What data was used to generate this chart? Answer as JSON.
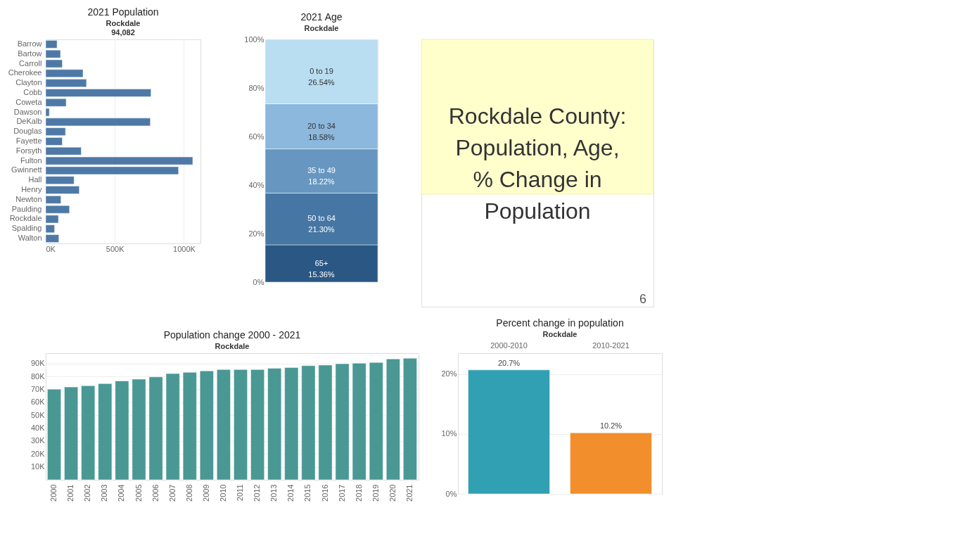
{
  "chart_data": [
    {
      "type": "bar",
      "orientation": "horizontal",
      "title": "2021 Population",
      "subtitle": "Rockdale",
      "annotations": [
        "94,082"
      ],
      "categories": [
        "Barrow",
        "Bartow",
        "Carroll",
        "Cherokee",
        "Clayton",
        "Cobb",
        "Coweta",
        "Dawson",
        "DeKalb",
        "Douglas",
        "Fayette",
        "Forsyth",
        "Fulton",
        "Gwinnett",
        "Hall",
        "Henry",
        "Newton",
        "Paulding",
        "Rockdale",
        "Spalding",
        "Walton"
      ],
      "values": [
        82000,
        107000,
        120000,
        270000,
        295000,
        762000,
        148000,
        26000,
        757000,
        143000,
        120000,
        257000,
        1064000,
        961000,
        205000,
        243000,
        110000,
        172000,
        92000,
        64000,
        95000
      ],
      "color": "#4e79a7",
      "xlim": [
        0,
        1120000
      ],
      "xticks": [
        {
          "value": 0,
          "label": "0K"
        },
        {
          "value": 500000,
          "label": "500K"
        },
        {
          "value": 1000000,
          "label": "1000K"
        }
      ],
      "grid": "x"
    },
    {
      "type": "bar",
      "stacked": true,
      "title": "2021 Age",
      "subtitle": "Rockdale",
      "categories": [
        null
      ],
      "series": [
        {
          "name": "65+",
          "color": "#2a5783",
          "values": [
            15.36
          ],
          "value_labels": [
            "15.36%"
          ]
        },
        {
          "name": "50 to 64",
          "color": "#4676a3",
          "values": [
            21.3
          ],
          "value_labels": [
            "21.30%"
          ]
        },
        {
          "name": "35 to 49",
          "color": "#6797c0",
          "values": [
            18.22
          ],
          "value_labels": [
            "18.22%"
          ]
        },
        {
          "name": "20 to 34",
          "color": "#8bb8dc",
          "values": [
            18.58
          ],
          "value_labels": [
            "18.58%"
          ]
        },
        {
          "name": "0 to 19",
          "color": "#b9ddf1",
          "values": [
            26.54
          ],
          "value_labels": [
            "26.54%"
          ]
        }
      ],
      "ylim": [
        0,
        100
      ],
      "yticks": [
        {
          "value": 0,
          "label": "0%"
        },
        {
          "value": 20,
          "label": "20%"
        },
        {
          "value": 40,
          "label": "40%"
        },
        {
          "value": 60,
          "label": "60%"
        },
        {
          "value": 80,
          "label": "80%"
        },
        {
          "value": 100,
          "label": "100%"
        }
      ],
      "grid": "y"
    },
    {
      "type": "other",
      "title": "Rockdale County: Population, Age, % Change in Population",
      "annotations": [
        "6"
      ]
    },
    {
      "type": "bar",
      "title": "Population change 2000 - 2021",
      "subtitle": "Rockdale",
      "categories": [
        "2000",
        "2001",
        "2002",
        "2003",
        "2004",
        "2005",
        "2006",
        "2007",
        "2008",
        "2009",
        "2010",
        "2011",
        "2012",
        "2013",
        "2014",
        "2015",
        "2016",
        "2017",
        "2018",
        "2019",
        "2020",
        "2021"
      ],
      "values": [
        70100,
        71800,
        72800,
        74400,
        76500,
        77900,
        79600,
        82200,
        83200,
        84300,
        85300,
        85300,
        85300,
        86300,
        86900,
        88300,
        88800,
        89800,
        90200,
        90800,
        93500,
        94100
      ],
      "color": "#499894",
      "ylim": [
        0,
        98000
      ],
      "yticks": [
        {
          "value": 10000,
          "label": "10K"
        },
        {
          "value": 20000,
          "label": "20K"
        },
        {
          "value": 30000,
          "label": "30K"
        },
        {
          "value": 40000,
          "label": "40K"
        },
        {
          "value": 50000,
          "label": "50K"
        },
        {
          "value": 60000,
          "label": "60K"
        },
        {
          "value": 70000,
          "label": "70K"
        },
        {
          "value": 80000,
          "label": "80K"
        },
        {
          "value": 90000,
          "label": "90K"
        }
      ],
      "grid": "y"
    },
    {
      "type": "bar",
      "title": "Percent change in population",
      "subtitle": "Rockdale",
      "categories": [
        "2000-2010",
        "2010-2021"
      ],
      "values": [
        20.7,
        10.2
      ],
      "colors": [
        "#31a0b3",
        "#f28e2b"
      ],
      "value_labels": [
        "20.7%",
        "10.2%"
      ],
      "ylim": [
        0,
        23.5
      ],
      "yticks": [
        {
          "value": 0,
          "label": "0%"
        },
        {
          "value": 10,
          "label": "10%"
        },
        {
          "value": 20,
          "label": "20%"
        }
      ],
      "grid": "y"
    }
  ]
}
